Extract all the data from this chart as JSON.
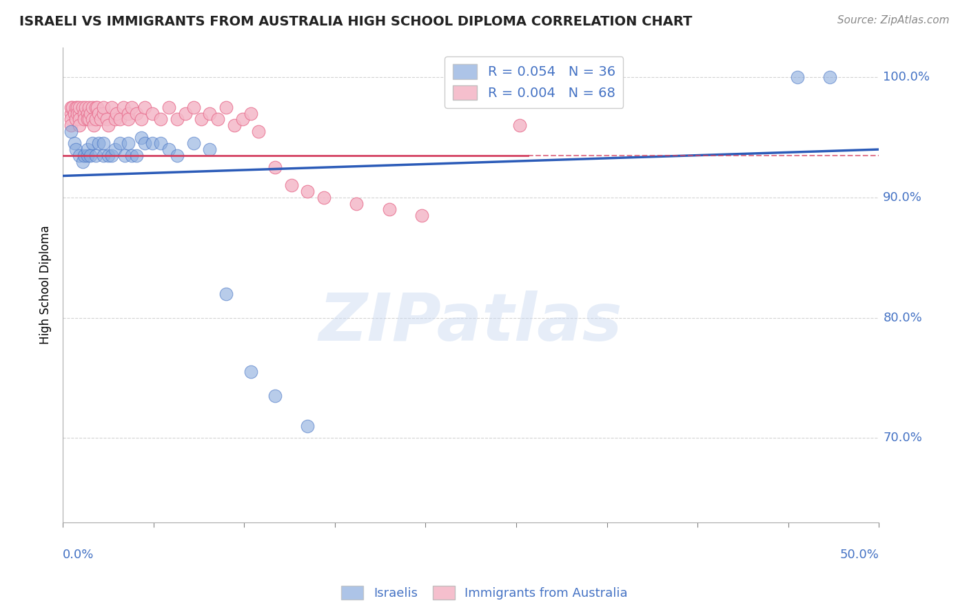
{
  "title": "ISRAELI VS IMMIGRANTS FROM AUSTRALIA HIGH SCHOOL DIPLOMA CORRELATION CHART",
  "source": "Source: ZipAtlas.com",
  "ylabel": "High School Diploma",
  "xlim": [
    0.0,
    0.5
  ],
  "ylim": [
    0.63,
    1.025
  ],
  "yticks": [
    0.7,
    0.8,
    0.9,
    1.0
  ],
  "ytick_labels": [
    "70.0%",
    "80.0%",
    "90.0%",
    "100.0%"
  ],
  "legend_r1": "R = 0.054",
  "legend_n1": "N = 36",
  "legend_r2": "R = 0.004",
  "legend_n2": "N = 68",
  "blue_color": "#8AABDD",
  "blue_edge_color": "#4472C4",
  "pink_color": "#F4B8C8",
  "pink_edge_color": "#E87090",
  "blue_line_color": "#2B5BB8",
  "pink_line_color": "#D44060",
  "legend_text_color": "#4472C4",
  "axis_label_color": "#4472C4",
  "title_color": "#222222",
  "background_color": "#FFFFFF",
  "watermark": "ZIPatlas",
  "israelis_x": [
    0.005,
    0.007,
    0.008,
    0.01,
    0.012,
    0.013,
    0.015,
    0.015,
    0.017,
    0.018,
    0.02,
    0.022,
    0.025,
    0.025,
    0.028,
    0.03,
    0.032,
    0.035,
    0.038,
    0.04,
    0.042,
    0.045,
    0.048,
    0.05,
    0.055,
    0.06,
    0.065,
    0.07,
    0.08,
    0.09,
    0.1,
    0.115,
    0.13,
    0.15,
    0.45,
    0.47
  ],
  "israelis_y": [
    0.955,
    0.945,
    0.94,
    0.935,
    0.93,
    0.935,
    0.935,
    0.94,
    0.935,
    0.945,
    0.935,
    0.945,
    0.935,
    0.945,
    0.935,
    0.935,
    0.94,
    0.945,
    0.935,
    0.945,
    0.935,
    0.935,
    0.95,
    0.945,
    0.945,
    0.945,
    0.94,
    0.935,
    0.945,
    0.94,
    0.82,
    0.755,
    0.735,
    0.71,
    1.0,
    1.0
  ],
  "australia_x": [
    0.005,
    0.005,
    0.005,
    0.005,
    0.006,
    0.007,
    0.008,
    0.008,
    0.009,
    0.009,
    0.01,
    0.01,
    0.01,
    0.01,
    0.012,
    0.013,
    0.013,
    0.014,
    0.015,
    0.015,
    0.016,
    0.016,
    0.017,
    0.018,
    0.018,
    0.019,
    0.02,
    0.02,
    0.021,
    0.022,
    0.023,
    0.025,
    0.025,
    0.027,
    0.028,
    0.03,
    0.032,
    0.033,
    0.035,
    0.037,
    0.04,
    0.04,
    0.042,
    0.045,
    0.048,
    0.05,
    0.055,
    0.06,
    0.065,
    0.07,
    0.075,
    0.08,
    0.085,
    0.09,
    0.095,
    0.1,
    0.105,
    0.11,
    0.115,
    0.12,
    0.13,
    0.14,
    0.15,
    0.16,
    0.18,
    0.2,
    0.22,
    0.28
  ],
  "australia_y": [
    0.97,
    0.975,
    0.965,
    0.96,
    0.975,
    0.97,
    0.965,
    0.975,
    0.975,
    0.97,
    0.97,
    0.975,
    0.965,
    0.96,
    0.975,
    0.97,
    0.965,
    0.975,
    0.97,
    0.965,
    0.975,
    0.965,
    0.97,
    0.975,
    0.965,
    0.96,
    0.975,
    0.965,
    0.975,
    0.97,
    0.965,
    0.97,
    0.975,
    0.965,
    0.96,
    0.975,
    0.965,
    0.97,
    0.965,
    0.975,
    0.97,
    0.965,
    0.975,
    0.97,
    0.965,
    0.975,
    0.97,
    0.965,
    0.975,
    0.965,
    0.97,
    0.975,
    0.965,
    0.97,
    0.965,
    0.975,
    0.96,
    0.965,
    0.97,
    0.955,
    0.925,
    0.91,
    0.905,
    0.9,
    0.895,
    0.89,
    0.885,
    0.96
  ],
  "blue_trend": [
    0.0,
    0.918,
    0.5,
    0.94
  ],
  "pink_trend_solid": [
    0.0,
    0.935,
    0.285,
    0.935
  ],
  "pink_trend_dash": [
    0.285,
    0.935,
    0.5,
    0.935
  ]
}
